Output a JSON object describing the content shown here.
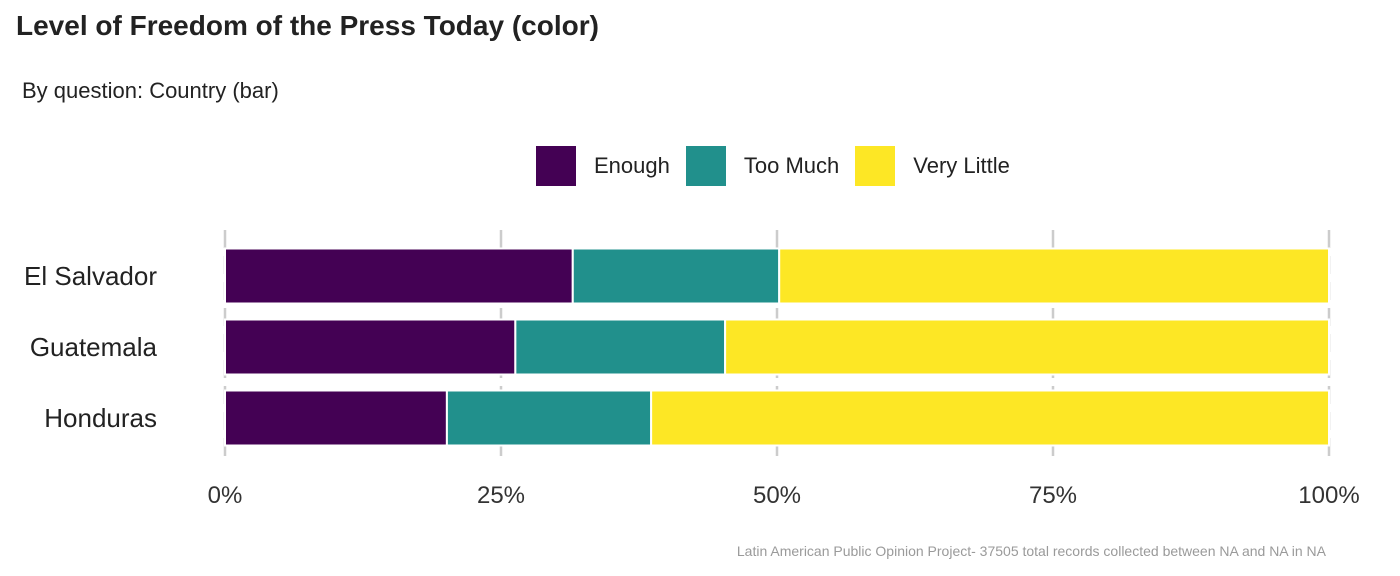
{
  "title": "Level of Freedom of the Press Today (color)",
  "subtitle": "By question: Country (bar)",
  "caption": "Latin American Public Opinion Project- 37505 total records collected between NA and NA in  NA",
  "legend": [
    {
      "label": "Enough",
      "color": "#440154"
    },
    {
      "label": "Too Much",
      "color": "#21908C"
    },
    {
      "label": "Very Little",
      "color": "#FDE725"
    }
  ],
  "chart_data": {
    "type": "bar",
    "orientation": "horizontal",
    "stacked": true,
    "categories": [
      "El Salvador",
      "Guatemala",
      "Honduras"
    ],
    "series": [
      {
        "name": "Enough",
        "color": "#440154",
        "values": [
          31.5,
          26.3,
          20.1
        ]
      },
      {
        "name": "Too Much",
        "color": "#21908C",
        "values": [
          18.7,
          19.0,
          18.5
        ]
      },
      {
        "name": "Very Little",
        "color": "#FDE725",
        "values": [
          49.8,
          54.7,
          61.4
        ]
      }
    ],
    "xlim": [
      0,
      100
    ],
    "x_ticks": [
      "0%",
      "25%",
      "50%",
      "75%",
      "100%"
    ],
    "x_tick_values": [
      0,
      25,
      50,
      75,
      100
    ],
    "grid": true,
    "legend_position": "top"
  }
}
